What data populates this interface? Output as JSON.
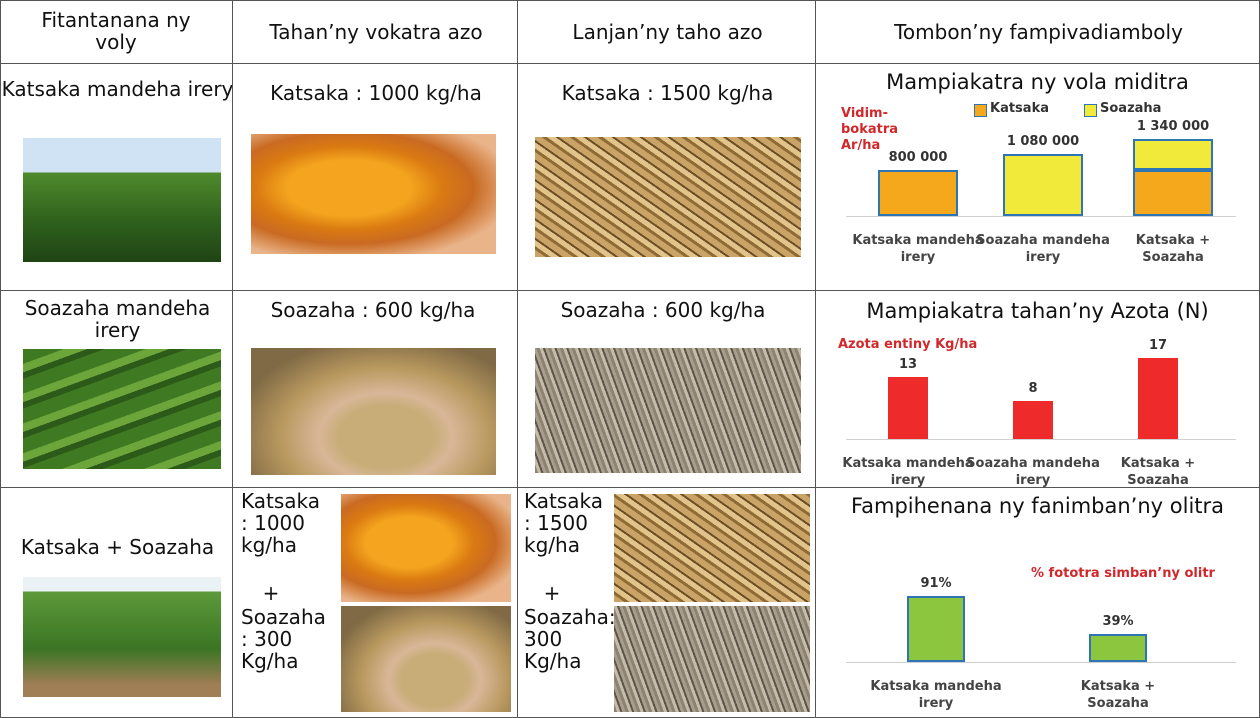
{
  "table": {
    "header": [
      "Fitantanana ny voly",
      "Tahan’ny vokatra azo",
      "Lanjan’ny taho azo",
      "Tombon’ny fampivadiamboly"
    ],
    "rows": [
      {
        "crop": "Katsaka mandeha irery",
        "yield": [
          "Katsaka : 1000 kg/ha"
        ],
        "residue": [
          "Katsaka : 1500 kg/ha"
        ],
        "chart": {
          "type": "bar",
          "stacked": true,
          "title": "Mampiakatra ny vola miditra",
          "y_label": "Vidim-bokatra Ar/ha",
          "categories": [
            "Katsaka mandeha irery",
            "Soazaha mandeha irery",
            "Katsaka + Soazaha"
          ],
          "series": [
            {
              "name": "Katsaka",
              "color": "#f6a81c",
              "values": [
                800000,
                null,
                800000
              ],
              "value_labels": [
                "800 000",
                null,
                null
              ]
            },
            {
              "name": "Soazaha",
              "color": "#f2ea3a",
              "values": [
                null,
                1080000,
                540000
              ],
              "value_labels": [
                null,
                "1 080 000",
                null
              ]
            }
          ],
          "totals": [
            null,
            null,
            1340000
          ],
          "total_labels": [
            null,
            null,
            "1 340 000"
          ],
          "legend": true
        }
      },
      {
        "crop": "Soazaha mandeha irery",
        "yield": [
          "Soazaha : 600 kg/ha"
        ],
        "residue": [
          "Soazaha : 600 kg/ha"
        ],
        "chart": {
          "type": "bar",
          "title": "Mampiakatra tahan’ny Azota (N)",
          "y_label": "Azota entiny Kg/ha",
          "categories": [
            "Katsaka mandeha irery",
            "Soazaha mandeha irery",
            "Katsaka + Soazaha"
          ],
          "values": [
            13,
            8,
            17
          ],
          "color": "#ee2a2a"
        }
      },
      {
        "crop": "Katsaka + Soazaha",
        "yield": [
          "Katsaka : 1000 kg/ha",
          "+",
          "Soazaha : 300 Kg/ha"
        ],
        "residue": [
          "Katsaka : 1500 kg/ha",
          "+",
          "Soazaha: 300 Kg/ha"
        ],
        "chart": {
          "type": "bar",
          "title": "Fampihenana ny fanimban’ny olitra",
          "y_label": "% fototra simban’ny olitr",
          "categories": [
            "Katsaka mandeha irery",
            "Katsaka + Soazaha"
          ],
          "values": [
            91,
            39
          ],
          "value_labels": [
            "91%",
            "39%"
          ],
          "color": "#8cc63f"
        }
      }
    ]
  }
}
